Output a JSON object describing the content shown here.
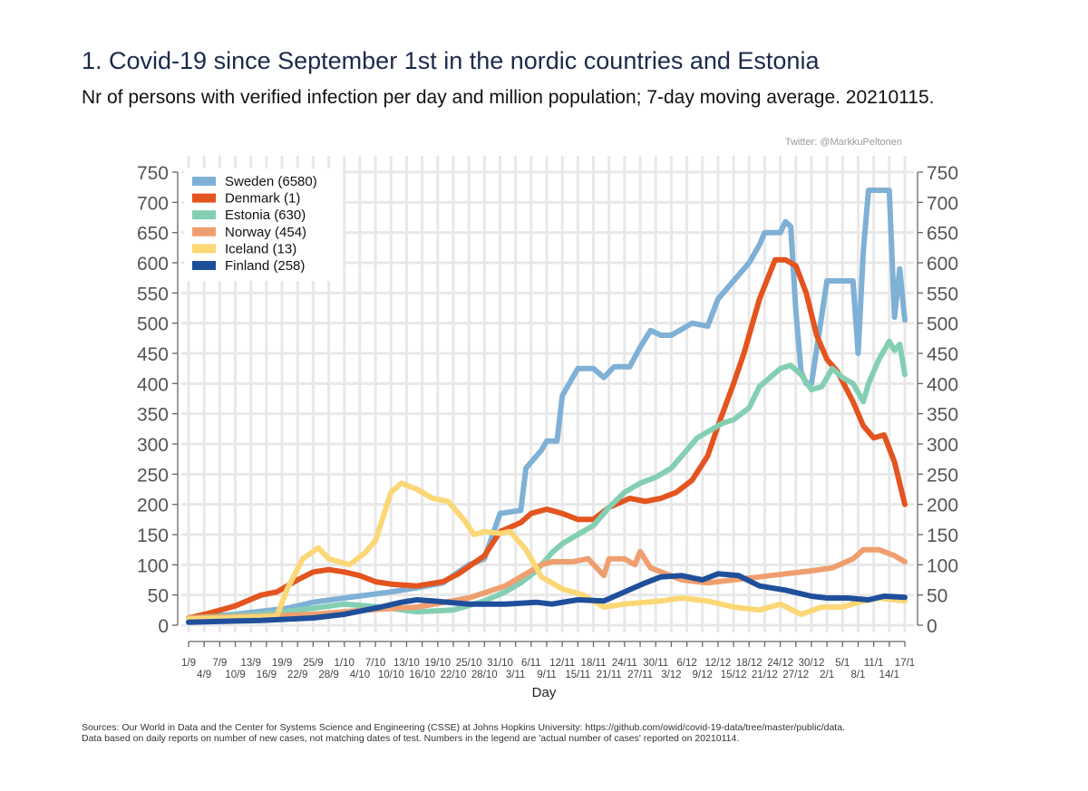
{
  "header": {
    "title": "1. Covid-19 since September 1st in the nordic countries and Estonia",
    "subtitle": "Nr of persons with verified infection per day and million population; 7-day moving average. 20210115.",
    "credit": "Twitter: @MarkkuPeltonen"
  },
  "footer": {
    "sources_line1": "Sources: Our World in Data and the Center for Systems Science and Engineering (CSSE) at Johns Hopkins University: https://github.com/owid/covid-19-data/tree/master/public/data.",
    "sources_line2": "Data based on daily reports on number of new cases, not matching dates of test. Numbers in the legend are 'actual number of cases' reported on 20210114."
  },
  "chart_data": {
    "type": "line",
    "title": "1. Covid-19 since September 1st in the nordic countries and Estonia",
    "xlabel": "Day",
    "ylabel": "",
    "ylim": [
      0,
      750
    ],
    "yticks": [
      0,
      50,
      100,
      150,
      200,
      250,
      300,
      350,
      400,
      450,
      500,
      550,
      600,
      650,
      700,
      750
    ],
    "x_range": [
      "2020-09-01",
      "2021-01-17"
    ],
    "x_ticks_upper": [
      "1/9",
      "7/9",
      "13/9",
      "19/9",
      "25/9",
      "1/10",
      "7/10",
      "13/10",
      "19/10",
      "25/10",
      "31/10",
      "6/11",
      "12/11",
      "18/11",
      "24/11",
      "30/11",
      "6/12",
      "12/12",
      "18/12",
      "24/12",
      "30/12",
      "5/1",
      "11/1",
      "17/1"
    ],
    "x_ticks_lower": [
      "4/9",
      "10/9",
      "16/9",
      "22/9",
      "28/9",
      "4/10",
      "10/10",
      "16/10",
      "22/10",
      "28/10",
      "3/11",
      "9/11",
      "15/11",
      "21/11",
      "27/11",
      "3/12",
      "9/12",
      "15/12",
      "21/12",
      "27/12",
      "2/1",
      "8/1",
      "14/1"
    ],
    "grid": true,
    "legend_position": "top-left",
    "series": [
      {
        "name": "Sweden (6580)",
        "color": "#7fb0d6",
        "points": [
          [
            "2020-09-01",
            12
          ],
          [
            "2020-09-10",
            18
          ],
          [
            "2020-09-20",
            28
          ],
          [
            "2020-09-25",
            38
          ],
          [
            "2020-10-01",
            45
          ],
          [
            "2020-10-10",
            55
          ],
          [
            "2020-10-15",
            62
          ],
          [
            "2020-10-20",
            70
          ],
          [
            "2020-10-25",
            100
          ],
          [
            "2020-10-28",
            110
          ],
          [
            "2020-10-31",
            185
          ],
          [
            "2020-11-04",
            190
          ],
          [
            "2020-11-05",
            260
          ],
          [
            "2020-11-08",
            290
          ],
          [
            "2020-11-09",
            305
          ],
          [
            "2020-11-11",
            305
          ],
          [
            "2020-11-12",
            380
          ],
          [
            "2020-11-14",
            410
          ],
          [
            "2020-11-15",
            425
          ],
          [
            "2020-11-18",
            425
          ],
          [
            "2020-11-20",
            410
          ],
          [
            "2020-11-22",
            428
          ],
          [
            "2020-11-25",
            428
          ],
          [
            "2020-11-27",
            460
          ],
          [
            "2020-11-29",
            488
          ],
          [
            "2020-12-01",
            480
          ],
          [
            "2020-12-03",
            480
          ],
          [
            "2020-12-07",
            500
          ],
          [
            "2020-12-10",
            495
          ],
          [
            "2020-12-12",
            540
          ],
          [
            "2020-12-15",
            570
          ],
          [
            "2020-12-18",
            600
          ],
          [
            "2020-12-20",
            630
          ],
          [
            "2020-12-21",
            650
          ],
          [
            "2020-12-24",
            650
          ],
          [
            "2020-12-25",
            668
          ],
          [
            "2020-12-26",
            660
          ],
          [
            "2020-12-27",
            520
          ],
          [
            "2020-12-28",
            420
          ],
          [
            "2020-12-29",
            400
          ],
          [
            "2020-12-30",
            400
          ],
          [
            "2021-01-02",
            570
          ],
          [
            "2021-01-04",
            570
          ],
          [
            "2021-01-07",
            570
          ],
          [
            "2021-01-08",
            450
          ],
          [
            "2021-01-09",
            620
          ],
          [
            "2021-01-10",
            720
          ],
          [
            "2021-01-12",
            720
          ],
          [
            "2021-01-14",
            720
          ],
          [
            "2021-01-15",
            510
          ],
          [
            "2021-01-16",
            590
          ],
          [
            "2021-01-17",
            505
          ]
        ]
      },
      {
        "name": "Denmark (1)",
        "color": "#e3541e",
        "points": [
          [
            "2020-09-01",
            12
          ],
          [
            "2020-09-05",
            20
          ],
          [
            "2020-09-10",
            32
          ],
          [
            "2020-09-15",
            50
          ],
          [
            "2020-09-18",
            55
          ],
          [
            "2020-09-20",
            65
          ],
          [
            "2020-09-22",
            75
          ],
          [
            "2020-09-25",
            88
          ],
          [
            "2020-09-28",
            92
          ],
          [
            "2020-10-01",
            88
          ],
          [
            "2020-10-04",
            82
          ],
          [
            "2020-10-07",
            72
          ],
          [
            "2020-10-10",
            68
          ],
          [
            "2020-10-15",
            65
          ],
          [
            "2020-10-20",
            72
          ],
          [
            "2020-10-23",
            85
          ],
          [
            "2020-10-28",
            115
          ],
          [
            "2020-10-31",
            155
          ],
          [
            "2020-11-04",
            170
          ],
          [
            "2020-11-06",
            185
          ],
          [
            "2020-11-09",
            192
          ],
          [
            "2020-11-12",
            185
          ],
          [
            "2020-11-15",
            175
          ],
          [
            "2020-11-18",
            175
          ],
          [
            "2020-11-21",
            195
          ],
          [
            "2020-11-25",
            210
          ],
          [
            "2020-11-28",
            205
          ],
          [
            "2020-12-01",
            210
          ],
          [
            "2020-12-04",
            220
          ],
          [
            "2020-12-07",
            240
          ],
          [
            "2020-12-10",
            280
          ],
          [
            "2020-12-12",
            330
          ],
          [
            "2020-12-15",
            400
          ],
          [
            "2020-12-17",
            450
          ],
          [
            "2020-12-20",
            540
          ],
          [
            "2020-12-23",
            605
          ],
          [
            "2020-12-25",
            605
          ],
          [
            "2020-12-27",
            595
          ],
          [
            "2020-12-29",
            550
          ],
          [
            "2020-12-31",
            480
          ],
          [
            "2021-01-02",
            440
          ],
          [
            "2021-01-04",
            420
          ],
          [
            "2021-01-07",
            370
          ],
          [
            "2021-01-09",
            330
          ],
          [
            "2021-01-11",
            310
          ],
          [
            "2021-01-13",
            315
          ],
          [
            "2021-01-15",
            270
          ],
          [
            "2021-01-17",
            200
          ]
        ]
      },
      {
        "name": "Estonia (630)",
        "color": "#84cfb2",
        "points": [
          [
            "2020-09-01",
            12
          ],
          [
            "2020-09-15",
            18
          ],
          [
            "2020-09-25",
            28
          ],
          [
            "2020-10-01",
            35
          ],
          [
            "2020-10-08",
            30
          ],
          [
            "2020-10-15",
            22
          ],
          [
            "2020-10-22",
            25
          ],
          [
            "2020-10-28",
            40
          ],
          [
            "2020-11-01",
            55
          ],
          [
            "2020-11-04",
            70
          ],
          [
            "2020-11-07",
            90
          ],
          [
            "2020-11-10",
            120
          ],
          [
            "2020-11-12",
            135
          ],
          [
            "2020-11-15",
            150
          ],
          [
            "2020-11-18",
            165
          ],
          [
            "2020-11-21",
            195
          ],
          [
            "2020-11-24",
            220
          ],
          [
            "2020-11-27",
            235
          ],
          [
            "2020-11-30",
            245
          ],
          [
            "2020-12-03",
            260
          ],
          [
            "2020-12-06",
            290
          ],
          [
            "2020-12-08",
            310
          ],
          [
            "2020-12-10",
            320
          ],
          [
            "2020-12-13",
            335
          ],
          [
            "2020-12-15",
            340
          ],
          [
            "2020-12-18",
            360
          ],
          [
            "2020-12-20",
            395
          ],
          [
            "2020-12-22",
            410
          ],
          [
            "2020-12-24",
            425
          ],
          [
            "2020-12-26",
            430
          ],
          [
            "2020-12-28",
            415
          ],
          [
            "2020-12-30",
            390
          ],
          [
            "2021-01-01",
            395
          ],
          [
            "2021-01-03",
            425
          ],
          [
            "2021-01-05",
            410
          ],
          [
            "2021-01-07",
            400
          ],
          [
            "2021-01-09",
            370
          ],
          [
            "2021-01-10",
            400
          ],
          [
            "2021-01-12",
            440
          ],
          [
            "2021-01-14",
            470
          ],
          [
            "2021-01-15",
            455
          ],
          [
            "2021-01-16",
            465
          ],
          [
            "2021-01-17",
            415
          ]
        ]
      },
      {
        "name": "Norway (454)",
        "color": "#ef9f6f",
        "points": [
          [
            "2020-09-01",
            12
          ],
          [
            "2020-09-15",
            15
          ],
          [
            "2020-09-25",
            18
          ],
          [
            "2020-10-05",
            25
          ],
          [
            "2020-10-15",
            30
          ],
          [
            "2020-10-25",
            45
          ],
          [
            "2020-11-01",
            65
          ],
          [
            "2020-11-05",
            85
          ],
          [
            "2020-11-08",
            100
          ],
          [
            "2020-11-10",
            105
          ],
          [
            "2020-11-14",
            105
          ],
          [
            "2020-11-17",
            110
          ],
          [
            "2020-11-20",
            82
          ],
          [
            "2020-11-21",
            110
          ],
          [
            "2020-11-24",
            110
          ],
          [
            "2020-11-26",
            100
          ],
          [
            "2020-11-27",
            122
          ],
          [
            "2020-11-29",
            95
          ],
          [
            "2020-12-02",
            85
          ],
          [
            "2020-12-05",
            75
          ],
          [
            "2020-12-10",
            70
          ],
          [
            "2020-12-15",
            75
          ],
          [
            "2020-12-20",
            80
          ],
          [
            "2020-12-25",
            85
          ],
          [
            "2020-12-30",
            90
          ],
          [
            "2021-01-03",
            95
          ],
          [
            "2021-01-07",
            110
          ],
          [
            "2021-01-09",
            125
          ],
          [
            "2021-01-12",
            125
          ],
          [
            "2021-01-15",
            115
          ],
          [
            "2021-01-17",
            105
          ]
        ]
      },
      {
        "name": "Iceland (13)",
        "color": "#fbd776",
        "points": [
          [
            "2020-09-01",
            10
          ],
          [
            "2020-09-18",
            15
          ],
          [
            "2020-09-20",
            60
          ],
          [
            "2020-09-23",
            110
          ],
          [
            "2020-09-26",
            128
          ],
          [
            "2020-09-28",
            110
          ],
          [
            "2020-10-02",
            100
          ],
          [
            "2020-10-05",
            120
          ],
          [
            "2020-10-07",
            140
          ],
          [
            "2020-10-10",
            220
          ],
          [
            "2020-10-12",
            235
          ],
          [
            "2020-10-15",
            225
          ],
          [
            "2020-10-18",
            210
          ],
          [
            "2020-10-21",
            205
          ],
          [
            "2020-10-24",
            175
          ],
          [
            "2020-10-26",
            150
          ],
          [
            "2020-10-28",
            155
          ],
          [
            "2020-10-31",
            152
          ],
          [
            "2020-11-02",
            155
          ],
          [
            "2020-11-05",
            125
          ],
          [
            "2020-11-08",
            80
          ],
          [
            "2020-11-12",
            60
          ],
          [
            "2020-11-16",
            50
          ],
          [
            "2020-11-20",
            30
          ],
          [
            "2020-11-24",
            35
          ],
          [
            "2020-12-01",
            40
          ],
          [
            "2020-12-05",
            45
          ],
          [
            "2020-12-10",
            40
          ],
          [
            "2020-12-15",
            30
          ],
          [
            "2020-12-20",
            25
          ],
          [
            "2020-12-24",
            35
          ],
          [
            "2020-12-28",
            18
          ],
          [
            "2021-01-01",
            30
          ],
          [
            "2021-01-05",
            30
          ],
          [
            "2021-01-09",
            40
          ],
          [
            "2021-01-12",
            45
          ],
          [
            "2021-01-17",
            40
          ]
        ]
      },
      {
        "name": "Finland (258)",
        "color": "#1f4f9a",
        "points": [
          [
            "2020-09-01",
            5
          ],
          [
            "2020-09-15",
            8
          ],
          [
            "2020-09-25",
            12
          ],
          [
            "2020-10-01",
            18
          ],
          [
            "2020-10-08",
            30
          ],
          [
            "2020-10-12",
            38
          ],
          [
            "2020-10-15",
            42
          ],
          [
            "2020-10-18",
            40
          ],
          [
            "2020-10-25",
            35
          ],
          [
            "2020-11-01",
            35
          ],
          [
            "2020-11-07",
            38
          ],
          [
            "2020-11-10",
            35
          ],
          [
            "2020-11-15",
            42
          ],
          [
            "2020-11-20",
            40
          ],
          [
            "2020-11-24",
            55
          ],
          [
            "2020-11-28",
            70
          ],
          [
            "2020-12-01",
            80
          ],
          [
            "2020-12-05",
            82
          ],
          [
            "2020-12-09",
            75
          ],
          [
            "2020-12-12",
            85
          ],
          [
            "2020-12-16",
            82
          ],
          [
            "2020-12-20",
            65
          ],
          [
            "2020-12-25",
            58
          ],
          [
            "2020-12-30",
            48
          ],
          [
            "2021-01-02",
            45
          ],
          [
            "2021-01-06",
            45
          ],
          [
            "2021-01-10",
            42
          ],
          [
            "2021-01-13",
            48
          ],
          [
            "2021-01-17",
            46
          ]
        ]
      }
    ]
  }
}
